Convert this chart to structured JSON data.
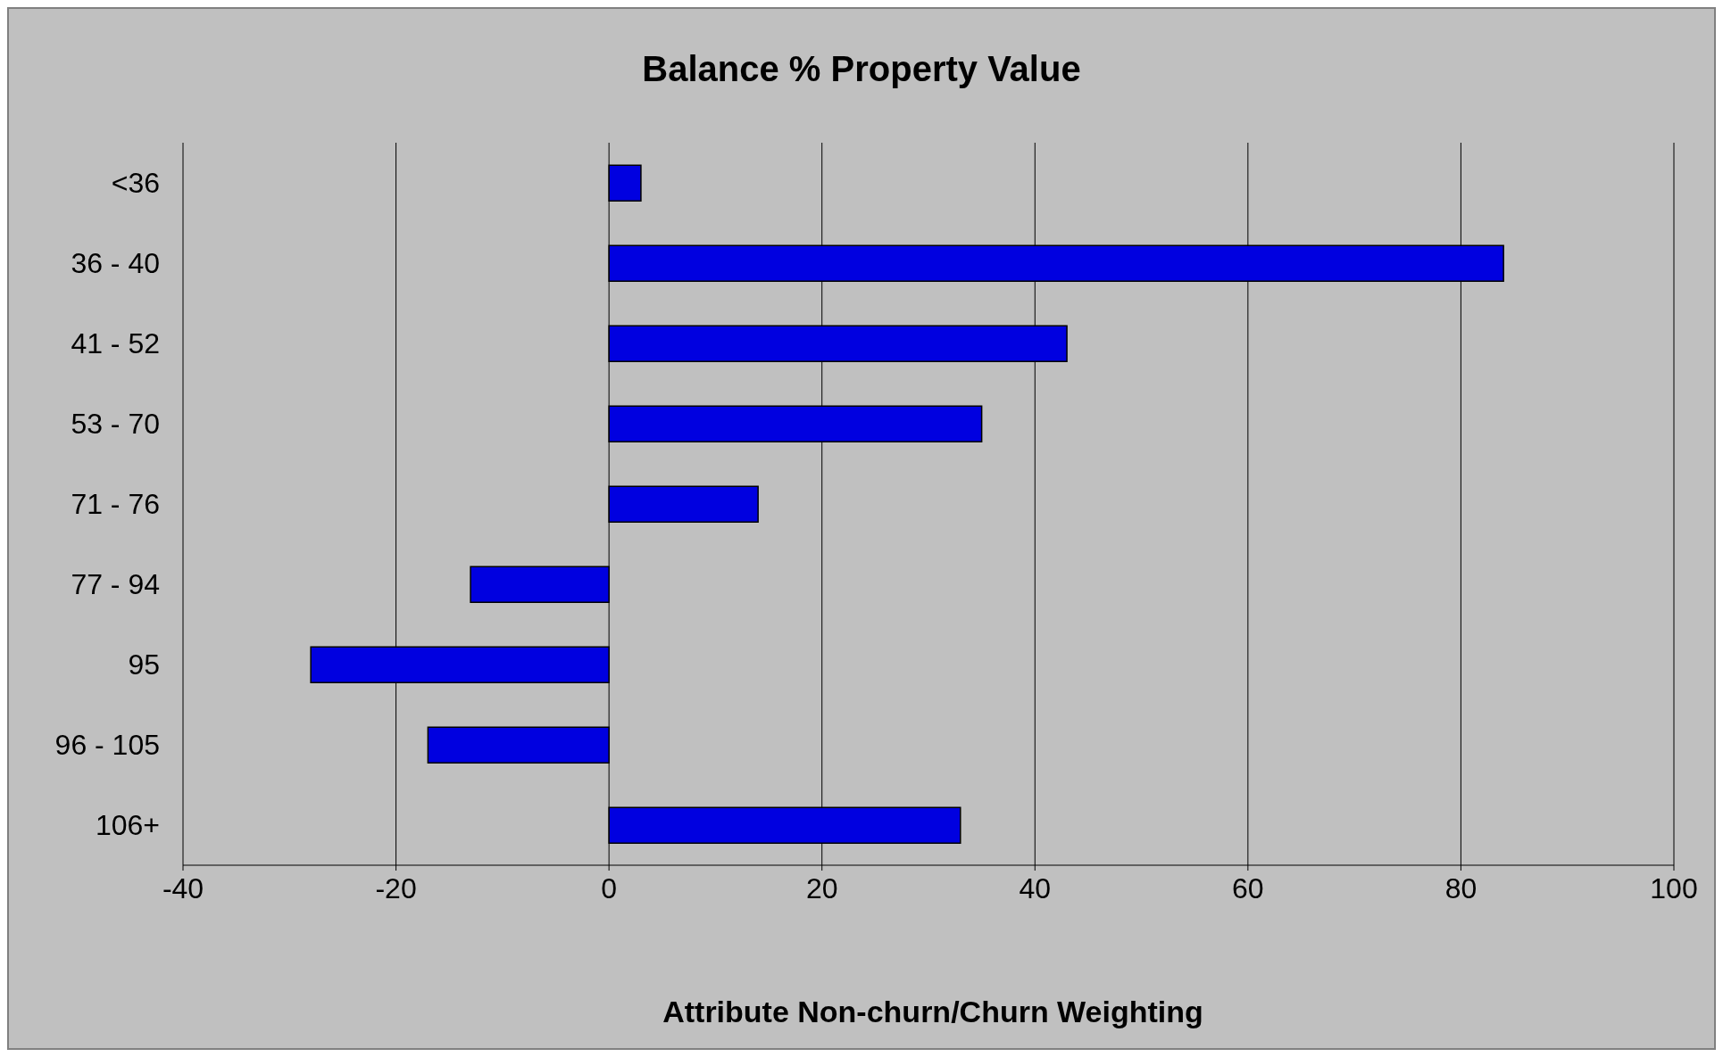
{
  "chart_data": {
    "type": "bar",
    "orientation": "horizontal",
    "title": "Balance % Property Value",
    "xlabel": "Attribute Non-churn/Churn Weighting",
    "categories": [
      "<36",
      "36 - 40",
      "41 - 52",
      "53 - 70",
      "71 - 76",
      "77 - 94",
      "95",
      "96 - 105",
      "106+"
    ],
    "values": [
      3,
      84,
      43,
      35,
      14,
      -13,
      -28,
      -17,
      33
    ],
    "color": "#0000e0",
    "xlim": [
      -40,
      100
    ],
    "xticks": [
      -40,
      -20,
      0,
      20,
      40,
      60,
      80,
      100
    ],
    "grid": "x"
  }
}
